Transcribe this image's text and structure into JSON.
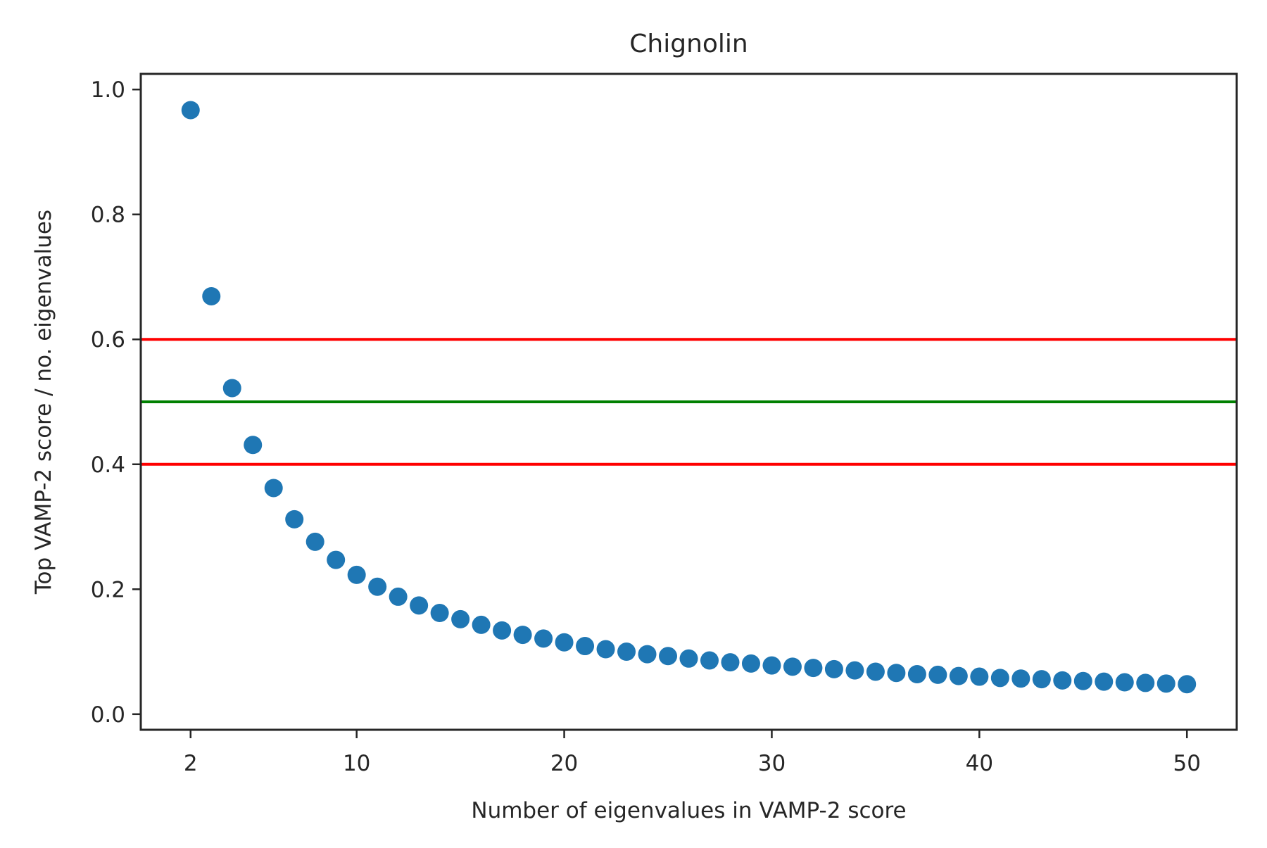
{
  "chart_data": {
    "type": "scatter",
    "title": "Chignolin",
    "xlabel": "Number of eigenvalues in VAMP-2 score",
    "ylabel": "Top VAMP-2 score / no. eigenvalues",
    "xlim": [
      -0.4,
      52.4
    ],
    "ylim": [
      -0.025,
      1.025
    ],
    "xticks": [
      2,
      10,
      20,
      30,
      40,
      50
    ],
    "yticks": [
      0.0,
      0.2,
      0.4,
      0.6,
      0.8,
      1.0
    ],
    "xtick_labels": [
      "2",
      "10",
      "20",
      "30",
      "40",
      "50"
    ],
    "ytick_labels": [
      "0.0",
      "0.2",
      "0.4",
      "0.6",
      "0.8",
      "1.0"
    ],
    "grid": false,
    "marker_color": "#1f77b4",
    "x": [
      2,
      3,
      4,
      5,
      6,
      7,
      8,
      9,
      10,
      11,
      12,
      13,
      14,
      15,
      16,
      17,
      18,
      19,
      20,
      21,
      22,
      23,
      24,
      25,
      26,
      27,
      28,
      29,
      30,
      31,
      32,
      33,
      34,
      35,
      36,
      37,
      38,
      39,
      40,
      41,
      42,
      43,
      44,
      45,
      46,
      47,
      48,
      49,
      50
    ],
    "y": [
      0.967,
      0.669,
      0.522,
      0.431,
      0.362,
      0.312,
      0.276,
      0.247,
      0.223,
      0.204,
      0.188,
      0.174,
      0.162,
      0.152,
      0.143,
      0.134,
      0.127,
      0.121,
      0.115,
      0.109,
      0.104,
      0.1,
      0.096,
      0.093,
      0.089,
      0.086,
      0.083,
      0.081,
      0.078,
      0.076,
      0.074,
      0.072,
      0.07,
      0.068,
      0.066,
      0.064,
      0.063,
      0.061,
      0.06,
      0.058,
      0.057,
      0.056,
      0.054,
      0.053,
      0.052,
      0.051,
      0.05,
      0.049,
      0.048
    ],
    "reference_lines": [
      {
        "y": 0.6,
        "color": "#ff0000"
      },
      {
        "y": 0.5,
        "color": "#008000"
      },
      {
        "y": 0.4,
        "color": "#ff0000"
      }
    ]
  }
}
